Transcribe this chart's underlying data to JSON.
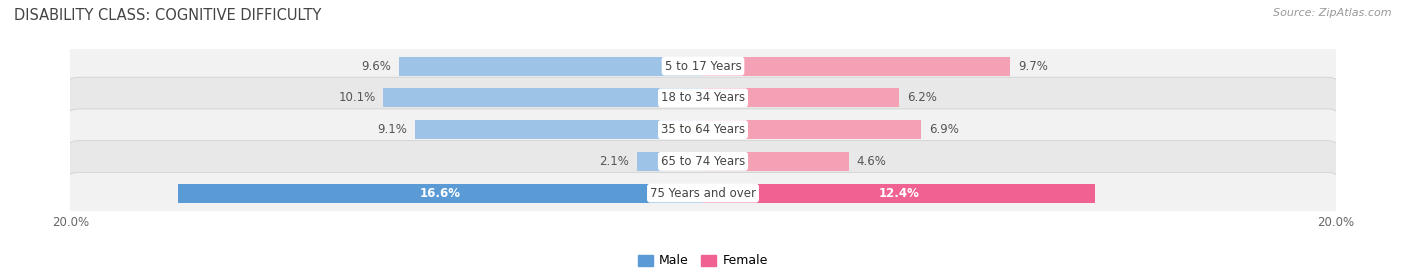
{
  "title": "DISABILITY CLASS: COGNITIVE DIFFICULTY",
  "source": "Source: ZipAtlas.com",
  "categories": [
    "5 to 17 Years",
    "18 to 34 Years",
    "35 to 64 Years",
    "65 to 74 Years",
    "75 Years and over"
  ],
  "male_values": [
    9.6,
    10.1,
    9.1,
    2.1,
    16.6
  ],
  "female_values": [
    9.7,
    6.2,
    6.9,
    4.6,
    12.4
  ],
  "max_val": 20.0,
  "male_color_strong": "#5b9bd5",
  "male_color_weak": "#9dc3e6",
  "female_color_strong": "#f06292",
  "female_color_weak": "#f4a0b5",
  "row_bg_light": "#f2f2f2",
  "row_bg_dark": "#e8e8e8",
  "title_color": "#444444",
  "axis_label_color": "#666666",
  "outside_label_color": "#555555",
  "inside_label_color": "#ffffff",
  "category_label_color": "#444444",
  "value_fontsize": 8.5,
  "category_fontsize": 8.5,
  "title_fontsize": 10.5,
  "source_fontsize": 8,
  "legend_fontsize": 9
}
